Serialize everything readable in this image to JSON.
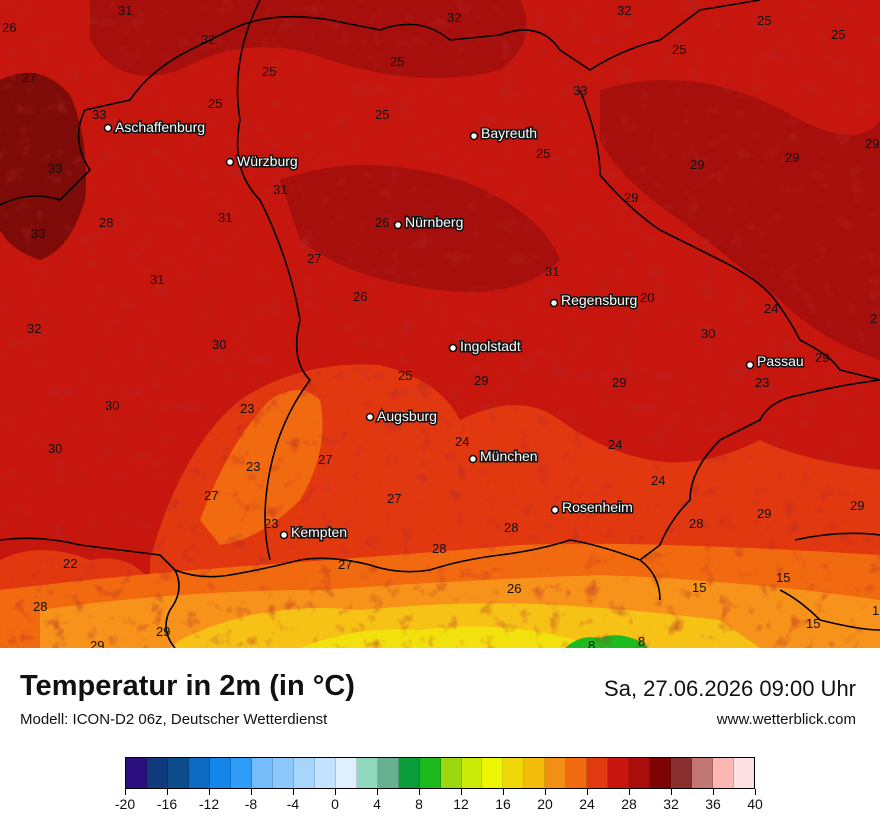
{
  "title": "Temperatur in 2m (in °C)",
  "subtitle": "Modell: ICON-D2 06z, Deutscher Wetterdienst",
  "datetime": "Sa, 27.06.2026 09:00 Uhr",
  "website": "www.wetterblick.com",
  "colors": {
    "base": "#c6160e",
    "warm_30": "#a60f0c",
    "hot_32": "#7e0b07",
    "mid_26": "#e23810",
    "orange_24": "#f16a10",
    "orange_22": "#f7921a",
    "yellow_20": "#f6c216",
    "yellow_18": "#f3e10d",
    "green_8": "#1ebb20"
  },
  "colorbar": {
    "colors": [
      "#2c0f7e",
      "#0f3a7c",
      "#0b4d8b",
      "#0d6ac2",
      "#1486e8",
      "#2e9df7",
      "#76bcfb",
      "#8cc8fb",
      "#a8d5fc",
      "#c4e2fe",
      "#dfeffe",
      "#8fd8bd",
      "#67b08f",
      "#0a9c3b",
      "#1eb91a",
      "#9bd80d",
      "#cceb07",
      "#eef606",
      "#f2d80a",
      "#f3bd0c",
      "#f28f14",
      "#f16a10",
      "#e13910",
      "#c6160e",
      "#a90d0c",
      "#7e0303",
      "#8a2f30",
      "#c27775",
      "#fcb6b4",
      "#fde1e2"
    ],
    "ticks": [
      "-20",
      "-16",
      "-12",
      "-8",
      "-4",
      "0",
      "4",
      "8",
      "12",
      "16",
      "20",
      "24",
      "28",
      "32",
      "36",
      "40"
    ]
  },
  "cities": [
    {
      "name": "Aschaffenburg"
    },
    {
      "name": "Würzburg"
    },
    {
      "name": "Bayreuth"
    },
    {
      "name": "Nürnberg"
    },
    {
      "name": "Regensburg"
    },
    {
      "name": "Ingolstadt"
    },
    {
      "name": "Passau"
    },
    {
      "name": "Augsburg"
    },
    {
      "name": "München"
    },
    {
      "name": "Rosenheim"
    },
    {
      "name": "Kempten"
    }
  ],
  "values": [
    "31",
    "32",
    "32",
    "26",
    "25",
    "25",
    "32",
    "27",
    "25",
    "25",
    "25",
    "33",
    "25",
    "33",
    "25",
    "29",
    "29",
    "33",
    "25",
    "31",
    "29",
    "29",
    "31",
    "28",
    "33",
    "26",
    "27",
    "31",
    "31",
    "26",
    "20",
    "24",
    "32",
    "30",
    "30",
    "2",
    "29",
    "25",
    "29",
    "29",
    "30",
    "23",
    "23",
    "30",
    "24",
    "24",
    "23",
    "27",
    "24",
    "27",
    "27",
    "29",
    "29",
    "28",
    "23",
    "28",
    "28",
    "22",
    "27",
    "15",
    "28",
    "26",
    "15",
    "1",
    "29",
    "15",
    "29",
    "8",
    "8"
  ]
}
